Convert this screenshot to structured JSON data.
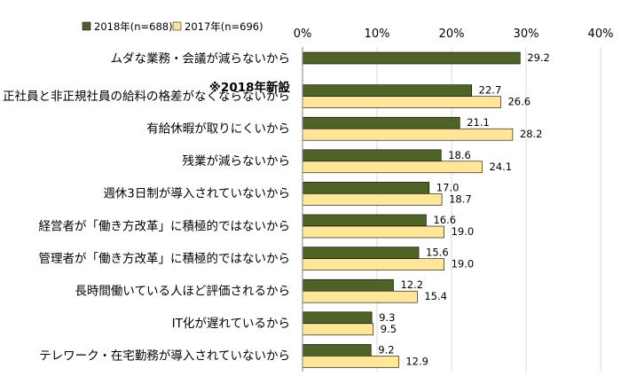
{
  "chart_data": {
    "type": "bar",
    "orientation": "horizontal",
    "title": "",
    "xlabel": "",
    "ylabel": "",
    "xlim": [
      0,
      40
    ],
    "ticks": [
      "0%",
      "10%",
      "20%",
      "30%",
      "40%"
    ],
    "tick_values": [
      0,
      10,
      20,
      30,
      40
    ],
    "grid": true,
    "legend_position": "top-left",
    "categories": [
      "ムダな業務・会議が減らないから",
      "正社員と非正規社員の給料の格差がなくならないから",
      "有給休暇が取りにくいから",
      "残業が減らないから",
      "週休3日制が導入されていないから",
      "経営者が「働き方改革」に積極的ではないから",
      "管理者が「働き方改革」に積極的ではないから",
      "長時間働いている人ほど評価されるから",
      "IT化が遅れているから",
      "テレワーク・在宅勤務が導入されていないから"
    ],
    "annotation": "※2018年新設",
    "series": [
      {
        "name": "2018年(n=688)",
        "color": "#4f6228",
        "values": [
          29.2,
          22.7,
          21.1,
          18.6,
          17.0,
          16.6,
          15.6,
          12.2,
          9.3,
          9.2
        ]
      },
      {
        "name": "2017年(n=696)",
        "color": "#ffe699",
        "values": [
          null,
          26.6,
          28.2,
          24.1,
          18.7,
          19.0,
          19.0,
          15.4,
          9.5,
          12.9
        ]
      }
    ]
  }
}
